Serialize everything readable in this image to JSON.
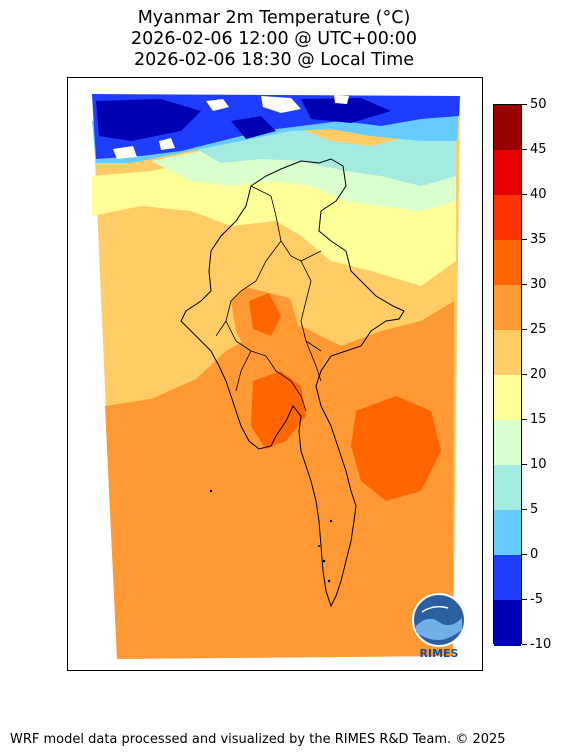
{
  "title": {
    "line1": "Myanmar 2m Temperature (°C)",
    "line2": "2026-02-06 12:00 @ UTC+00:00",
    "line3": "2026-02-06 18:30 @ Local Time"
  },
  "colorbar": {
    "unit": "°C",
    "levels": [
      "50",
      "45",
      "40",
      "35",
      "30",
      "25",
      "20",
      "15",
      "10",
      "5",
      "0",
      "-5",
      "-10"
    ],
    "colors": [
      "#9b0000",
      "#e50000",
      "#ff3300",
      "#ff6600",
      "#ff9933",
      "#ffcc66",
      "#ffff99",
      "#d9ffcc",
      "#a3eae0",
      "#66ccff",
      "#1f3dff",
      "#0000b3"
    ]
  },
  "map": {
    "region": "Myanmar",
    "colors": {
      "cold_deep": "#0000b3",
      "cold": "#1f3dff",
      "cool": "#66ccff",
      "mild": "#a3eae0",
      "pale": "#d9ffcc",
      "warm_yellow": "#ffff99",
      "warm": "#ffcc66",
      "hot": "#ff9933",
      "hotter": "#ff6600"
    }
  },
  "logo": {
    "text": "RIMES"
  },
  "footer": "WRF model data processed and visualized by the RIMES R&D Team. © 2025"
}
